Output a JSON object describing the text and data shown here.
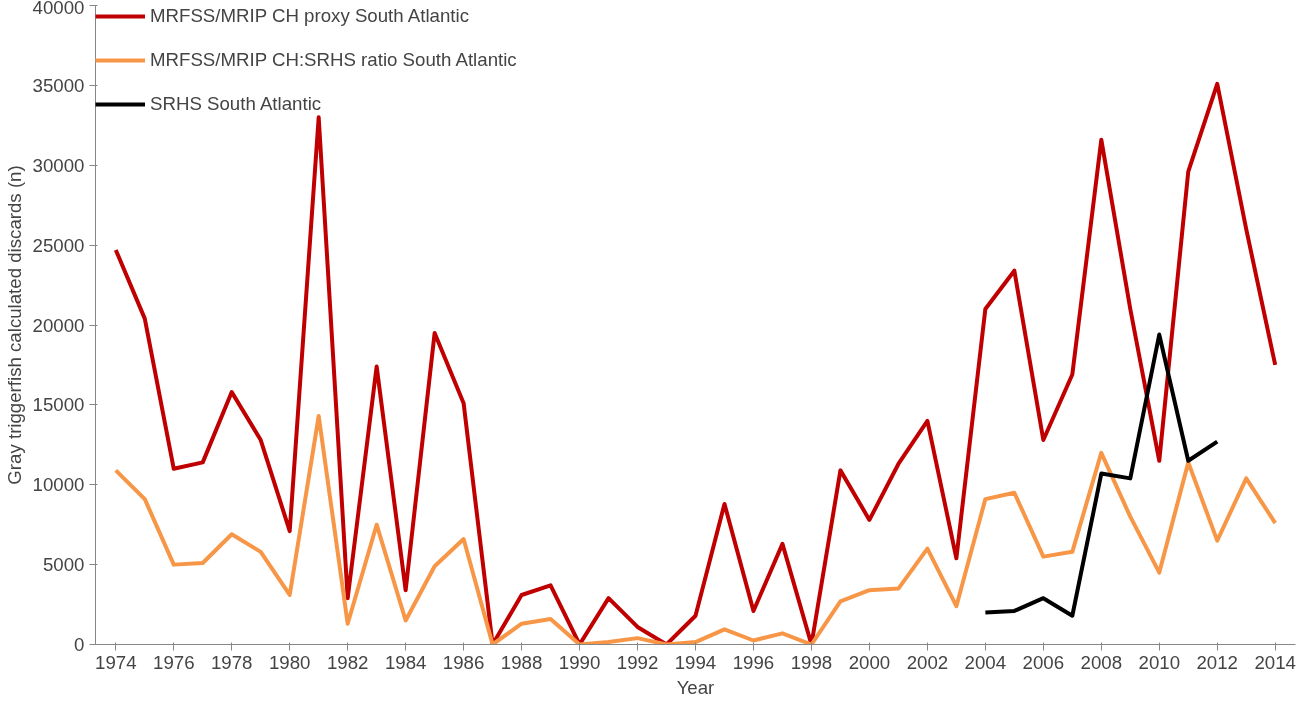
{
  "chart_data": {
    "type": "line",
    "xlabel": "Year",
    "ylabel": "Gray triggerfish calculated discards (n)",
    "x": [
      1974,
      1975,
      1976,
      1977,
      1978,
      1979,
      1980,
      1981,
      1982,
      1983,
      1984,
      1985,
      1986,
      1987,
      1988,
      1989,
      1990,
      1991,
      1992,
      1993,
      1994,
      1995,
      1996,
      1997,
      1998,
      1999,
      2000,
      2001,
      2002,
      2003,
      2004,
      2005,
      2006,
      2007,
      2008,
      2009,
      2010,
      2011,
      2012,
      2013,
      2014
    ],
    "series": [
      {
        "name": "MRFSS/MRIP CH proxy South Atlantic",
        "color": "#c00000",
        "values": [
          24700,
          20400,
          11000,
          11400,
          15800,
          12800,
          7100,
          33000,
          2900,
          17400,
          3400,
          19500,
          15100,
          0,
          3100,
          3700,
          0,
          2900,
          1100,
          0,
          1800,
          8800,
          2100,
          6300,
          0,
          10900,
          7800,
          11300,
          14000,
          5400,
          21000,
          23400,
          12800,
          16900,
          31600,
          21000,
          11500,
          29600,
          35100,
          26000,
          17500
        ]
      },
      {
        "name": "MRFSS/MRIP CH:SRHS ratio South Atlantic",
        "color": "#f79646",
        "values": [
          10900,
          9100,
          5000,
          5100,
          6900,
          5800,
          3100,
          14300,
          1300,
          7500,
          1500,
          4900,
          6600,
          0,
          1300,
          1600,
          0,
          150,
          400,
          0,
          150,
          950,
          250,
          700,
          0,
          2700,
          3400,
          3500,
          6000,
          2400,
          9100,
          9500,
          5500,
          5800,
          12000,
          8000,
          4500,
          11400,
          6500,
          10400,
          7600
        ]
      },
      {
        "name": "SRHS South Atlantic",
        "color": "#000000",
        "x": [
          2004,
          2005,
          2006,
          2007,
          2008,
          2009,
          2010,
          2011,
          2012
        ],
        "values": [
          2000,
          2100,
          2900,
          1800,
          10700,
          10400,
          19400,
          11500,
          12700
        ]
      }
    ],
    "xlim": [
      1973.3,
      2014.7
    ],
    "xticks": [
      1974,
      1976,
      1978,
      1980,
      1982,
      1984,
      1986,
      1988,
      1990,
      1992,
      1994,
      1996,
      1998,
      2000,
      2002,
      2004,
      2006,
      2008,
      2010,
      2012,
      2014
    ],
    "ylim": [
      0,
      40000
    ],
    "yticks": [
      0,
      5000,
      10000,
      15000,
      20000,
      25000,
      30000,
      35000,
      40000
    ],
    "grid": false,
    "legend": "top left",
    "marker": "none",
    "line_style": "solid"
  }
}
